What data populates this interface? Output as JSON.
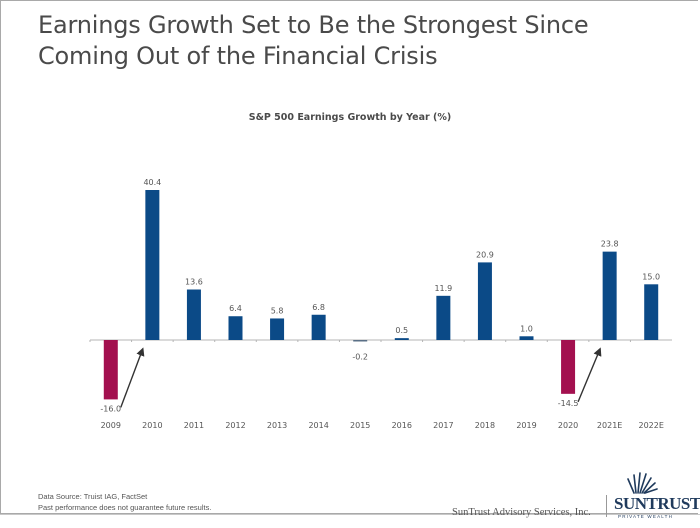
{
  "slide": {
    "title_line1": "Earnings Growth Set to Be the Strongest Since",
    "title_line2": "Coming Out of the Financial Crisis",
    "footnote_source": "Data Source: Truist IAG, FactSet",
    "footnote_disclaimer": "Past performance does not guarantee future results.",
    "advisory_name": "SunTrust Advisory Services, Inc.",
    "logo_name": "SunTrust",
    "logo_subtitle": "PRIVATE WEALTH"
  },
  "colors": {
    "positive": "#0b4a87",
    "negative": "#a3104f",
    "axis": "#b5b5b5",
    "label": "#555555",
    "arrow": "#333333"
  },
  "chart_data": {
    "type": "bar",
    "title": "S&P 500 Earnings Growth by Year (%)",
    "xlabel": "",
    "ylabel": "",
    "categories": [
      "2009",
      "2010",
      "2011",
      "2012",
      "2013",
      "2014",
      "2015",
      "2016",
      "2017",
      "2018",
      "2019",
      "2020",
      "2021E",
      "2022E"
    ],
    "values": [
      -16.0,
      40.4,
      13.6,
      6.4,
      5.8,
      6.8,
      -0.2,
      0.5,
      11.9,
      20.9,
      1.0,
      -14.5,
      23.8,
      15.0
    ],
    "value_labels": [
      "-16.0",
      "40.4",
      "13.6",
      "6.4",
      "5.8",
      "6.8",
      "-0.2",
      "0.5",
      "11.9",
      "20.9",
      "1.0",
      "-14.5",
      "23.8",
      "15.0"
    ],
    "highlighted_negative": [
      "2009",
      "2020"
    ],
    "ylim": [
      -16.0,
      40.4
    ],
    "grid": false,
    "legend": "none",
    "annotations": [
      {
        "type": "arrow",
        "from": "2009",
        "to": "2010",
        "text": ""
      },
      {
        "type": "arrow",
        "from": "2020",
        "to": "2021E",
        "text": ""
      }
    ]
  }
}
